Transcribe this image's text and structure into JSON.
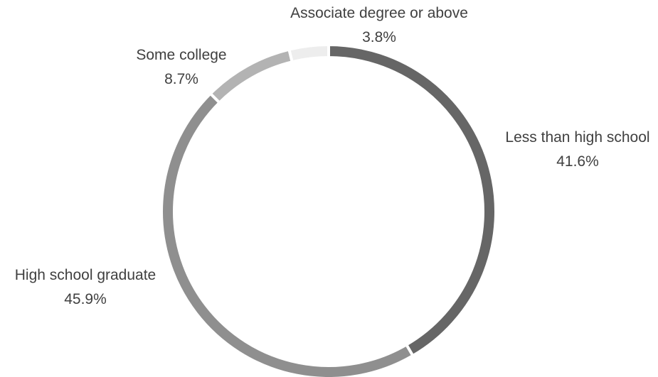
{
  "chart_data": {
    "type": "pie",
    "variant": "donut",
    "title": "",
    "categories": [
      "Less than high school",
      "High school graduate",
      "Some college",
      "Associate degree or above"
    ],
    "values": [
      41.6,
      45.9,
      8.7,
      3.8
    ],
    "value_labels": [
      "41.6%",
      "45.9%",
      "8.7%",
      "3.8%"
    ],
    "colors": [
      "#666666",
      "#8f8f8f",
      "#b3b3b3",
      "#ededed"
    ],
    "legend": "none",
    "start_angle_deg": 0,
    "direction": "clockwise"
  }
}
